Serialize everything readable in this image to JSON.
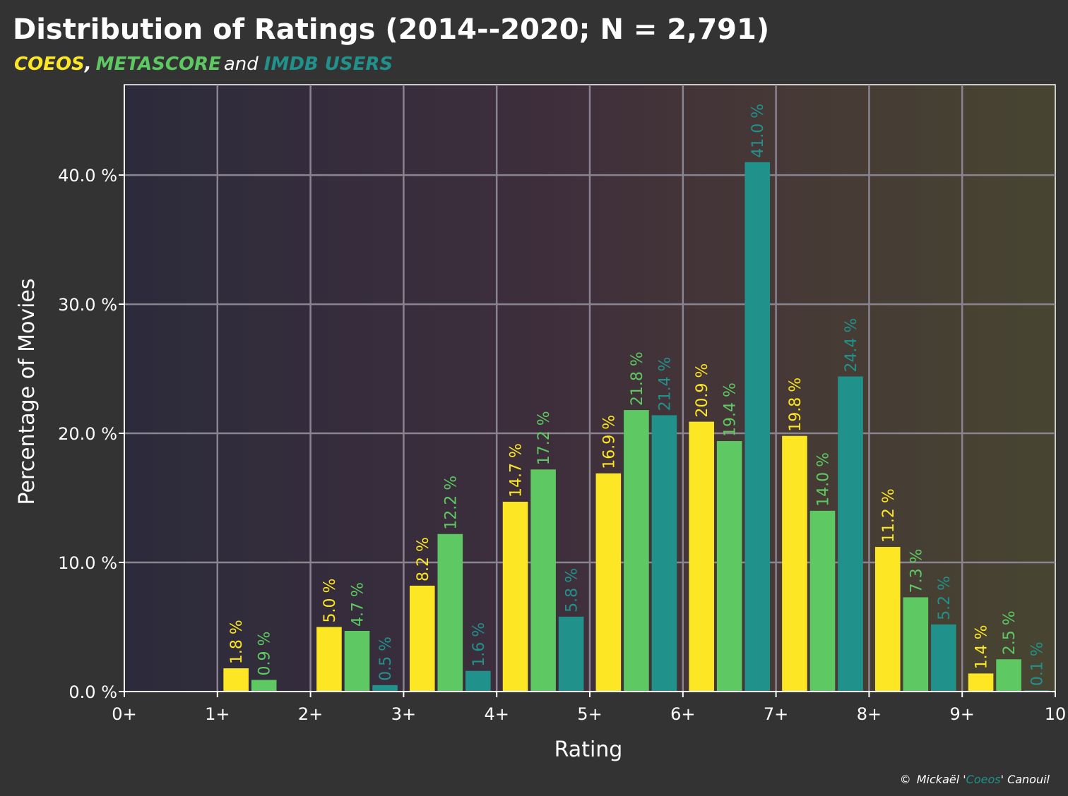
{
  "colors": {
    "background": "#333333",
    "coeos": "#FDE725",
    "metascore": "#5EC962",
    "imdb": "#21918C",
    "grid": "#8a8390",
    "text": "#ffffff"
  },
  "chart_data": {
    "type": "bar",
    "title": "Distribution of Ratings (2014--2020; N =  2,791)",
    "subtitle": {
      "coeos": "COEOS",
      "sep1": ",",
      "metascore": "METASCORE",
      "and": "and",
      "imdb": "IMDB USERS"
    },
    "xlabel": "Rating",
    "ylabel": "Percentage of  Movies",
    "xlim": [
      0,
      10
    ],
    "ylim": [
      0,
      47
    ],
    "categories": [
      "0+",
      "1+",
      "2+",
      "3+",
      "4+",
      "5+",
      "6+",
      "7+",
      "8+",
      "9+"
    ],
    "x_tick_labels": [
      "0+",
      "1+",
      "2+",
      "3+",
      "4+",
      "5+",
      "6+",
      "7+",
      "8+",
      "9+",
      "10"
    ],
    "y_ticks": [
      0,
      10,
      20,
      30,
      40
    ],
    "y_tick_labels": [
      "0.0 %",
      "10.0  %",
      "20.0 %",
      "30.0 %",
      "40.0 %"
    ],
    "grid": true,
    "value_labels_rotated": true,
    "series": [
      {
        "name": "COEOS",
        "color": "#FDE725",
        "values": [
          null,
          1.8,
          5.0,
          8.2,
          14.7,
          16.9,
          20.9,
          19.8,
          11.2,
          1.4
        ],
        "labels": [
          "",
          "1.8 %",
          "5.0 %",
          "8.2 %",
          "14.7 %",
          "16.9 %",
          "20.9 %",
          "19.8 %",
          "11.2 %",
          "1.4 %"
        ]
      },
      {
        "name": "METASCORE",
        "color": "#5EC962",
        "values": [
          null,
          0.9,
          4.7,
          12.2,
          17.2,
          21.8,
          19.4,
          14.0,
          7.3,
          2.5
        ],
        "labels": [
          "",
          "0.9 %",
          "4.7 %",
          "12.2 %",
          "17.2 %",
          "21.8 %",
          "19.4 %",
          "14.0 %",
          "7.3 %",
          "2.5 %"
        ]
      },
      {
        "name": "IMDB USERS",
        "color": "#21918C",
        "values": [
          null,
          null,
          0.5,
          1.6,
          5.8,
          21.4,
          41.0,
          24.4,
          5.2,
          0.1
        ],
        "labels": [
          "",
          "",
          "0.5 %",
          "1.6 %",
          "5.8 %",
          "21.4 %",
          "41.0 %",
          "24.4 %",
          "5.2 %",
          "0.1 %"
        ]
      }
    ],
    "credit": {
      "copyright": "©",
      "name_before": "Mickaël  '",
      "handle": "Coeos",
      "name_after": "'  Canouil"
    }
  }
}
